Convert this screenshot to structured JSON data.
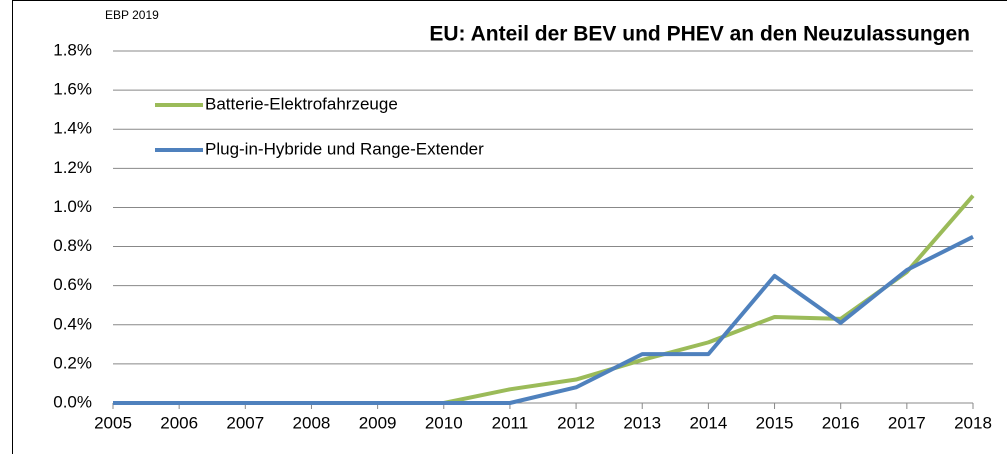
{
  "chart_data": {
    "type": "line",
    "title": "EU: Anteil der BEV und PHEV an den Neuzulassungen",
    "source": "EBP 2019",
    "x": [
      2005,
      2006,
      2007,
      2008,
      2009,
      2010,
      2011,
      2012,
      2013,
      2014,
      2015,
      2016,
      2017,
      2018
    ],
    "xlim": [
      2005,
      2018
    ],
    "series": [
      {
        "name": "Batterie-Elektrofahrzeuge",
        "color": "#9bbb59",
        "values": [
          0,
          0,
          0,
          0,
          0,
          0,
          0.07,
          0.12,
          0.22,
          0.31,
          0.44,
          0.43,
          0.67,
          1.06
        ]
      },
      {
        "name": "Plug-in-Hybride und Range-Extender",
        "color": "#4f81bd",
        "values": [
          0,
          0,
          0,
          0,
          0,
          0,
          0,
          0.08,
          0.25,
          0.25,
          0.65,
          0.41,
          0.68,
          0.85
        ]
      }
    ],
    "ylim": [
      0,
      1.8
    ],
    "yticks": [
      {
        "value": 0,
        "label": "0.0%"
      },
      {
        "value": 0.2,
        "label": "0.2%"
      },
      {
        "value": 0.4,
        "label": "0.4%"
      },
      {
        "value": 0.6,
        "label": "0.6%"
      },
      {
        "value": 0.8,
        "label": "0.8%"
      },
      {
        "value": 1.0,
        "label": "1.0%"
      },
      {
        "value": 1.2,
        "label": "1.2%"
      },
      {
        "value": 1.4,
        "label": "1.4%"
      },
      {
        "value": 1.6,
        "label": "1.6%"
      },
      {
        "value": 1.8,
        "label": "1.8%"
      }
    ],
    "grid": true,
    "legend": "upper left"
  }
}
